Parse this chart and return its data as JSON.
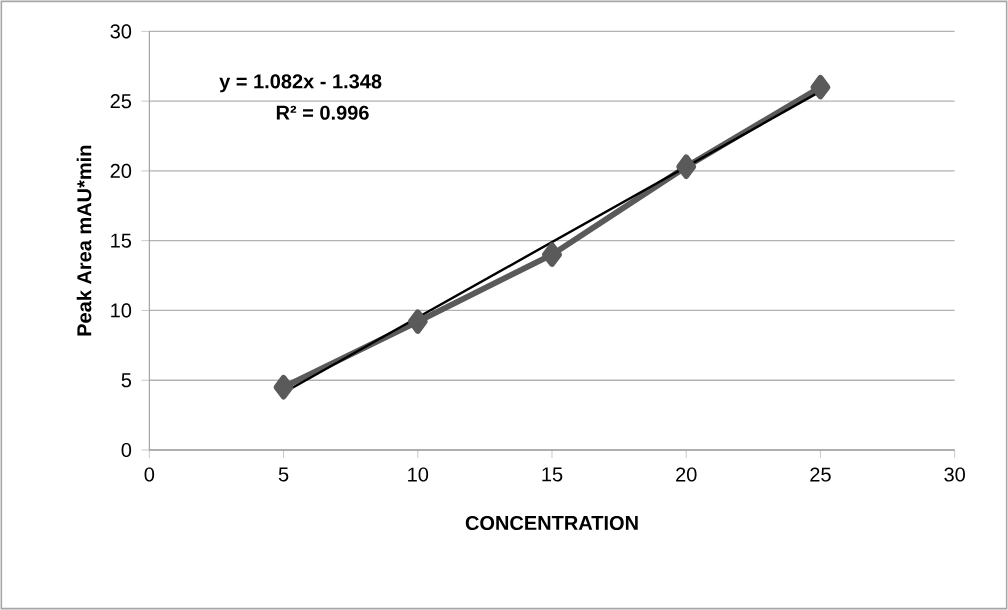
{
  "chart_data": {
    "type": "line",
    "xlabel": "CONCENTRATION",
    "ylabel": "Peak Area mAU*min",
    "x": [
      5,
      10,
      15,
      20,
      25
    ],
    "series": [
      {
        "color": "#5a5a5a",
        "values": [
          4.5,
          9.2,
          14.0,
          20.3,
          26.0
        ],
        "marker": "diamond"
      },
      {
        "type": "line",
        "color": "#000000",
        "x": [
          5,
          25
        ],
        "values": [
          4.1,
          25.7
        ],
        "marker": "none"
      }
    ],
    "annotations": [
      "y = 1.082x - 1.348",
      "R² = 0.996"
    ],
    "xlim": [
      0,
      30
    ],
    "xticks": [
      0,
      5,
      10,
      15,
      20,
      25,
      30
    ],
    "ylim": [
      0,
      30
    ],
    "yticks": [
      0,
      5,
      10,
      15,
      20,
      25,
      30
    ],
    "grid": "y"
  }
}
